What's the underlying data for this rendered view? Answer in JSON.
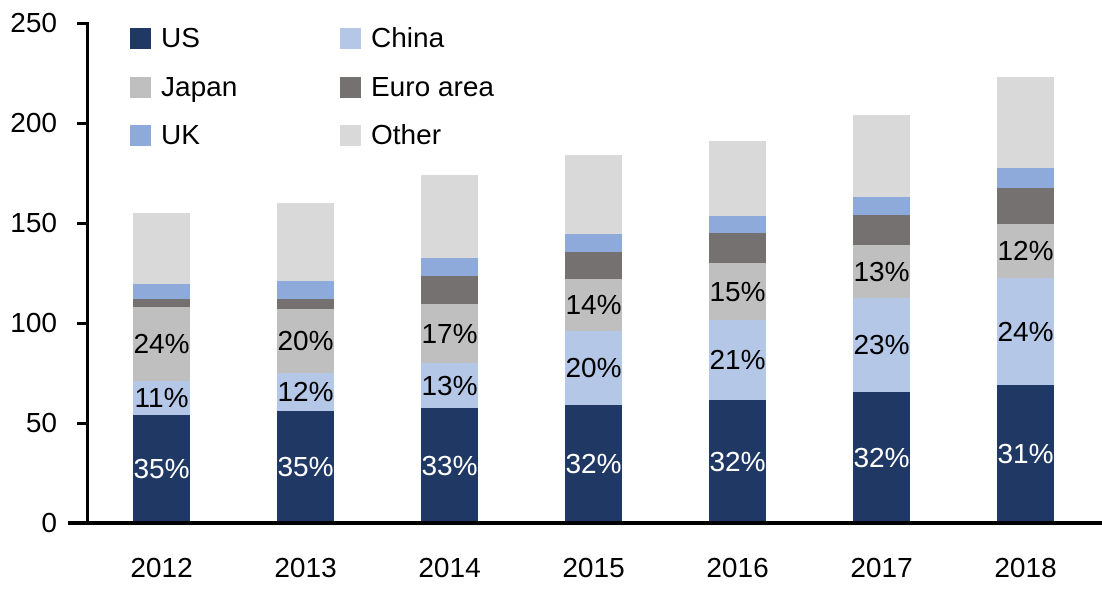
{
  "chart_data": {
    "type": "bar",
    "variant": "stacked",
    "title": "",
    "xlabel": "",
    "ylabel": "",
    "grid": false,
    "legend_position": "top-left",
    "legend_columns": 2,
    "categories": [
      "2012",
      "2013",
      "2014",
      "2015",
      "2016",
      "2017",
      "2018"
    ],
    "series": [
      {
        "name": "US",
        "color": "#1f3864",
        "label_color": "#ffffff",
        "values": [
          54,
          56,
          57.5,
          59,
          61.5,
          65.5,
          69
        ],
        "labels": [
          "35%",
          "35%",
          "33%",
          "32%",
          "32%",
          "32%",
          "31%"
        ]
      },
      {
        "name": "China",
        "color": "#b4c7e7",
        "label_color": "#000000",
        "values": [
          17,
          19,
          22.5,
          37,
          40,
          47,
          53.5
        ],
        "labels": [
          "11%",
          "12%",
          "13%",
          "20%",
          "21%",
          "23%",
          "24%"
        ]
      },
      {
        "name": "Japan",
        "color": "#bfbfbf",
        "label_color": "#000000",
        "values": [
          37,
          32,
          29.5,
          26,
          28.5,
          26.5,
          27
        ],
        "labels": [
          "24%",
          "20%",
          "17%",
          "14%",
          "15%",
          "13%",
          "12%"
        ]
      },
      {
        "name": "Euro area",
        "color": "#767171",
        "values": [
          4,
          5,
          14,
          13.5,
          15,
          15,
          18
        ],
        "labels": []
      },
      {
        "name": "UK",
        "color": "#8eaadb",
        "values": [
          7.5,
          9,
          9,
          9,
          8.5,
          9,
          10
        ],
        "labels": []
      },
      {
        "name": "Other",
        "color": "#d9d9d9",
        "values": [
          35.5,
          39,
          41.5,
          39.5,
          37.5,
          41,
          45.5
        ],
        "labels": []
      }
    ],
    "totals_estimated": [
      155,
      160,
      174,
      184,
      191,
      204,
      223
    ],
    "y_axis": {
      "min": 0,
      "max": 250,
      "tick_step": 50,
      "tick_labels": [
        "0",
        "50",
        "100",
        "150",
        "200",
        "250"
      ]
    },
    "axis_color": "#000000",
    "text_color": "#000000"
  }
}
